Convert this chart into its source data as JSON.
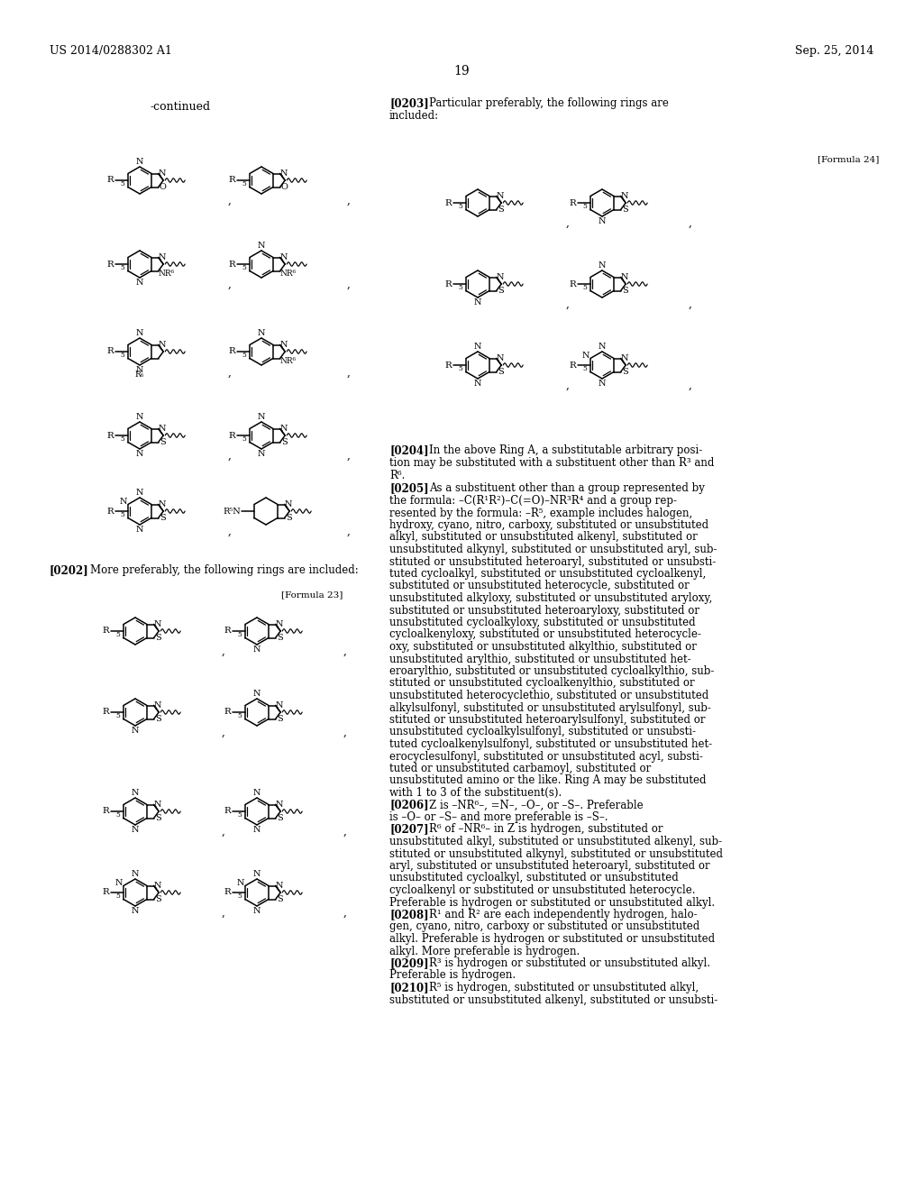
{
  "bg": "#ffffff",
  "header_left": "US 2014/0288302 A1",
  "header_right": "Sep. 25, 2014",
  "page_num": "19",
  "continued": "-continued",
  "para0202_bold": "[0202]",
  "para0202_text": "More preferably, the following rings are included:",
  "para0203_bold": "[0203]",
  "para0203_text": "Particular preferably, the following rings are\nincluded:",
  "formula23": "[Formula 23]",
  "formula24": "[Formula 24]",
  "para0204_bold": "[0204]",
  "para0204_text": "In the above Ring A, a substitutable arbitrary posi-\ntion may be substituted with a substituent other than R³ and\nR⁶.",
  "para0205_bold": "[0205]",
  "para0205_text": "As a substituent other than a group represented by\nthe formula: –C(R¹R²)–C(=O)–NR³R⁴ and a group rep-\nresented by the formula: –R⁵, example includes halogen,\nhydroxy, cyano, nitro, carboxy, substituted or unsubstituted\nalkyl, substituted or unsubstituted alkenyl, substituted or\nunsubstituted alkynyl, substituted or unsubstituted aryl, sub-\nstituted or unsubstituted heteroaryl, substituted or unsubsti-\ntuted cycloalkyl, substituted or unsubstituted cycloalkenyl,\nsubstituted or unsubstituted heterocycle, substituted or\nunsubstituted alkyloxy, substituted or unsubstituted aryloxy,\nsubstituted or unsubstituted heteroaryloxy, substituted or\nunsubstituted cycloalkyloxy, substituted or unsubstituted\ncycloalkenyloxy, substituted or unsubstituted heterocycle-\noxy, substituted or unsubstituted alkylthio, substituted or\nunsubstituted arylthio, substituted or unsubstituted het-\neroarylthio, substituted or unsubstituted cycloalkylthio, sub-\nstituted or unsubstituted cycloalkenylthio, substituted or\nunsubstituted heterocyclethio, substituted or unsubstituted\nalkylsulfonyl, substituted or unsubstituted arylsulfonyl, sub-\nstituted or unsubstituted heteroarylsulfonyl, substituted or\nunsubstituted cycloalkylsulfonyl, substituted or unsubsti-\ntuted cycloalkenylsulfonyl, substituted or unsubstituted het-\nerocyclesulfonyl, substituted or unsubstituted acyl, substi-\ntuted or unsubstituted carbamoyl, substituted or\nunsubstituted amino or the like. Ring A may be substituted\nwith 1 to 3 of the substituent(s).",
  "para0206_bold": "[0206]",
  "para0206_text": "Z is –NR⁶–, =N–, –O–, or –S–. Preferable\nis –O– or –S– and more preferable is –S–.",
  "para0207_bold": "[0207]",
  "para0207_text": "R⁶ of –NR⁶– in Z is hydrogen, substituted or\nunsubstituted alkyl, substituted or unsubstituted alkenyl, sub-\nstituted or unsubstituted alkynyl, substituted or unsubstituted\naryl, substituted or unsubstituted heteroaryl, substituted or\nunsubstituted cycloalkyl, substituted or unsubstituted\ncycloalkenyl or substituted or unsubstituted heterocycle.\nPreferable is hydrogen or substituted or unsubstituted alkyl.",
  "para0208_bold": "[0208]",
  "para0208_text": "R¹ and R² are each independently hydrogen, halo-\ngen, cyano, nitro, carboxy or substituted or unsubstituted\nalkyl. Preferable is hydrogen or substituted or unsubstituted\nalkyl. More preferable is hydrogen.",
  "para0209_bold": "[0209]",
  "para0209_text": "R³ is hydrogen or substituted or unsubstituted alkyl.\nPreferable is hydrogen.",
  "para0210_bold": "[0210]",
  "para0210_text": "R⁵ is hydrogen, substituted or unsubstituted alkyl,\nsubstituted or unsubstituted alkenyl, substituted or unsubsti-"
}
